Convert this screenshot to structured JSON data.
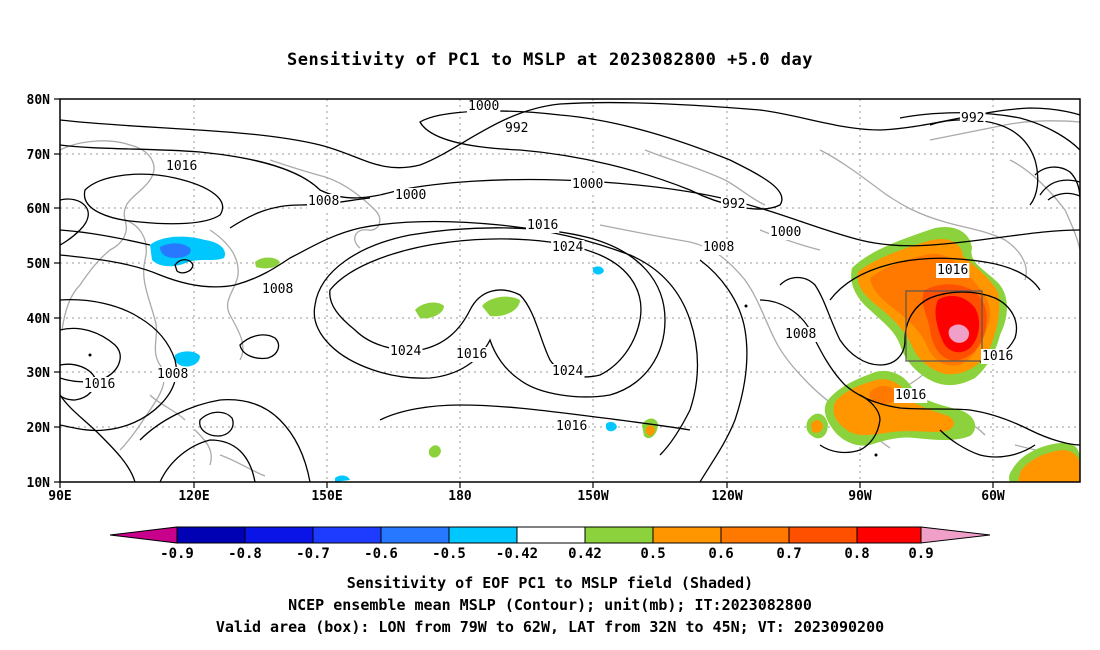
{
  "title": "Sensitivity of PC1 to MSLP at 2023082800 +5.0 day",
  "map": {
    "lat_labels": [
      "80N",
      "70N",
      "60N",
      "50N",
      "40N",
      "30N",
      "20N",
      "10N"
    ],
    "lon_labels": [
      "90E",
      "120E",
      "150E",
      "180",
      "150W",
      "120W",
      "90W",
      "60W"
    ],
    "contour_labels": [
      {
        "text": "1000"
      },
      {
        "text": "992"
      },
      {
        "text": "992"
      },
      {
        "text": "1016"
      },
      {
        "text": "1008"
      },
      {
        "text": "1000"
      },
      {
        "text": "1000"
      },
      {
        "text": "992"
      },
      {
        "text": "1000"
      },
      {
        "text": "1016"
      },
      {
        "text": "1024"
      },
      {
        "text": "1008"
      },
      {
        "text": "1016"
      },
      {
        "text": "1008"
      },
      {
        "text": "1008"
      },
      {
        "text": "1024"
      },
      {
        "text": "1016"
      },
      {
        "text": "1024"
      },
      {
        "text": "1016"
      },
      {
        "text": "1008"
      },
      {
        "text": "1016"
      },
      {
        "text": "1016"
      },
      {
        "text": "1016"
      }
    ],
    "valid_box": {
      "lon_from": "79W",
      "lon_to": "62W",
      "lat_from": "32N",
      "lat_to": "45N"
    }
  },
  "colorbar": {
    "labels": [
      "-0.9",
      "-0.8",
      "-0.7",
      "-0.6",
      "-0.5",
      "-0.42",
      "0.42",
      "0.5",
      "0.6",
      "0.7",
      "0.8",
      "0.9"
    ],
    "colors": {
      "low_end": "#c8008c",
      "c1": "#0000b4",
      "c2": "#0a14e6",
      "c3": "#1e3cff",
      "c4": "#2878ff",
      "c5": "#1e96ff",
      "c6": "#00c8ff",
      "white": "#ffffff",
      "c8": "#8cd23c",
      "c9": "#ff9600",
      "c10": "#ff7800",
      "c11": "#ff5000",
      "c12": "#ff0000",
      "high_end": "#f0a0c8"
    }
  },
  "captions": {
    "line1": "Sensitivity of EOF PC1 to MSLP field (Shaded)",
    "line2": "NCEP ensemble mean MSLP (Contour); unit(mb); IT:2023082800",
    "line3": "Valid area (box): LON from 79W to 62W, LAT from 32N to 45N; VT: 2023090200"
  }
}
